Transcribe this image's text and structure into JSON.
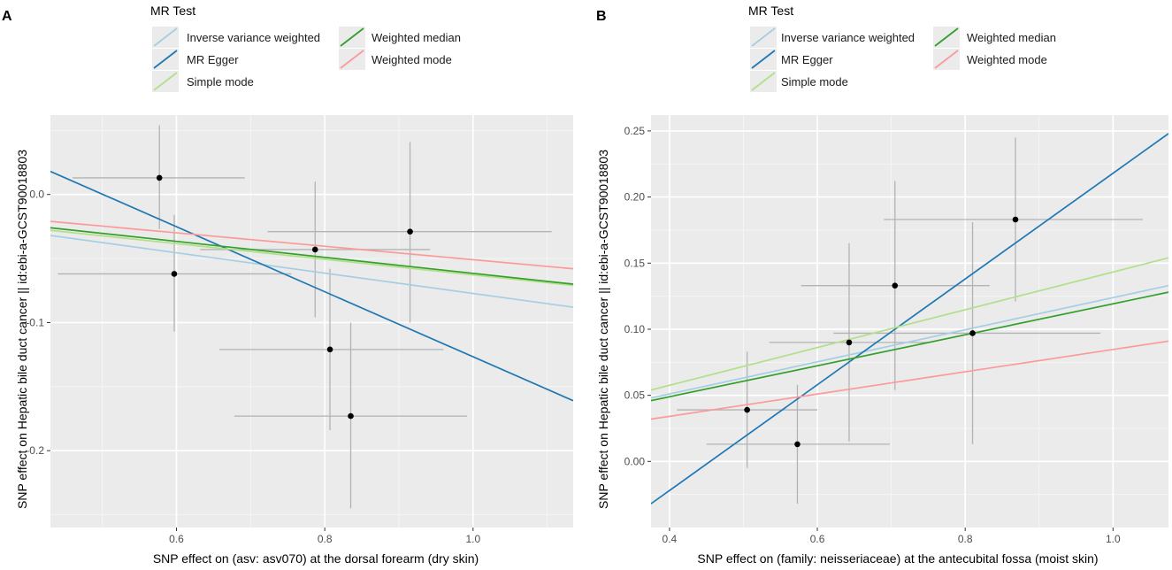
{
  "legend": {
    "title": "MR Test",
    "entries": [
      {
        "name": "Inverse variance weighted",
        "color": "#a6cee3"
      },
      {
        "name": "MR Egger",
        "color": "#1f78b4"
      },
      {
        "name": "Simple mode",
        "color": "#b2df8a"
      },
      {
        "name": "Weighted median",
        "color": "#33a02c"
      },
      {
        "name": "Weighted mode",
        "color": "#fb9a99"
      }
    ]
  },
  "chart_data": [
    {
      "type": "scatter",
      "panel_label": "A",
      "xlabel": "SNP effect on (asv: asv070) at the dorsal forearm (dry skin)",
      "ylabel": "SNP effect on Hepatic bile duct cancer || id:ebi-a-GCST90018803",
      "xlim": [
        0.43,
        1.135
      ],
      "ylim": [
        -0.26,
        0.062
      ],
      "x_ticks": [
        0.6,
        0.8,
        1.0
      ],
      "x_tick_labels": [
        "0.6",
        "0.8",
        "1.0"
      ],
      "y_ticks": [
        0.0,
        -0.1,
        -0.2
      ],
      "y_tick_labels": [
        "0.0",
        "-0.1",
        "-0.2"
      ],
      "points": [
        {
          "x": 0.577,
          "y": 0.013,
          "x_lo": 0.46,
          "x_hi": 0.692,
          "y_lo": -0.027,
          "y_hi": 0.054
        },
        {
          "x": 0.597,
          "y": -0.062,
          "x_lo": 0.44,
          "x_hi": 0.755,
          "y_lo": -0.107,
          "y_hi": -0.016
        },
        {
          "x": 0.787,
          "y": -0.043,
          "x_lo": 0.632,
          "x_hi": 0.942,
          "y_lo": -0.096,
          "y_hi": 0.01
        },
        {
          "x": 0.807,
          "y": -0.121,
          "x_lo": 0.658,
          "x_hi": 0.96,
          "y_lo": -0.184,
          "y_hi": -0.058
        },
        {
          "x": 0.835,
          "y": -0.173,
          "x_lo": 0.678,
          "x_hi": 0.992,
          "y_lo": -0.245,
          "y_hi": -0.1
        },
        {
          "x": 0.915,
          "y": -0.029,
          "x_lo": 0.723,
          "x_hi": 1.106,
          "y_lo": -0.1,
          "y_hi": 0.041
        }
      ],
      "lines": [
        {
          "name": "Inverse variance weighted",
          "x": [
            0.43,
            1.135
          ],
          "y": [
            -0.032,
            -0.088
          ]
        },
        {
          "name": "MR Egger",
          "x": [
            0.43,
            1.135
          ],
          "y": [
            0.018,
            -0.161
          ]
        },
        {
          "name": "Simple mode",
          "x": [
            0.43,
            1.135
          ],
          "y": [
            -0.028,
            -0.071
          ]
        },
        {
          "name": "Weighted median",
          "x": [
            0.43,
            1.135
          ],
          "y": [
            -0.026,
            -0.07
          ]
        },
        {
          "name": "Weighted mode",
          "x": [
            0.43,
            1.135
          ],
          "y": [
            -0.021,
            -0.058
          ]
        }
      ]
    },
    {
      "type": "scatter",
      "panel_label": "B",
      "xlabel": "SNP effect on (family: neisseriaceae) at the antecubital fossa (moist skin)",
      "ylabel": "SNP effect on Hepatic bile duct cancer || id:ebi-a-GCST90018803",
      "xlim": [
        0.375,
        1.075
      ],
      "ylim": [
        -0.05,
        0.262
      ],
      "x_ticks": [
        0.4,
        0.6,
        0.8,
        1.0
      ],
      "x_tick_labels": [
        "0.4",
        "0.6",
        "0.8",
        "1.0"
      ],
      "y_ticks": [
        0.0,
        0.05,
        0.1,
        0.15,
        0.2,
        0.25
      ],
      "y_tick_labels": [
        "0.00",
        "0.05",
        "0.10",
        "0.15",
        "0.20",
        "0.25"
      ],
      "points": [
        {
          "x": 0.505,
          "y": 0.039,
          "x_lo": 0.41,
          "x_hi": 0.6,
          "y_lo": -0.005,
          "y_hi": 0.083
        },
        {
          "x": 0.573,
          "y": 0.013,
          "x_lo": 0.45,
          "x_hi": 0.698,
          "y_lo": -0.032,
          "y_hi": 0.058
        },
        {
          "x": 0.643,
          "y": 0.09,
          "x_lo": 0.535,
          "x_hi": 0.752,
          "y_lo": 0.015,
          "y_hi": 0.165
        },
        {
          "x": 0.705,
          "y": 0.133,
          "x_lo": 0.578,
          "x_hi": 0.833,
          "y_lo": 0.054,
          "y_hi": 0.212
        },
        {
          "x": 0.81,
          "y": 0.097,
          "x_lo": 0.622,
          "x_hi": 0.983,
          "y_lo": 0.013,
          "y_hi": 0.181
        },
        {
          "x": 0.868,
          "y": 0.183,
          "x_lo": 0.69,
          "x_hi": 1.04,
          "y_lo": 0.121,
          "y_hi": 0.245
        }
      ],
      "lines": [
        {
          "name": "Inverse variance weighted",
          "x": [
            0.375,
            1.075
          ],
          "y": [
            0.048,
            0.133
          ]
        },
        {
          "name": "MR Egger",
          "x": [
            0.375,
            1.075
          ],
          "y": [
            -0.032,
            0.248
          ]
        },
        {
          "name": "Simple mode",
          "x": [
            0.375,
            1.075
          ],
          "y": [
            0.054,
            0.154
          ]
        },
        {
          "name": "Weighted median",
          "x": [
            0.375,
            1.075
          ],
          "y": [
            0.046,
            0.128
          ]
        },
        {
          "name": "Weighted mode",
          "x": [
            0.375,
            1.075
          ],
          "y": [
            0.032,
            0.091
          ]
        }
      ]
    }
  ]
}
